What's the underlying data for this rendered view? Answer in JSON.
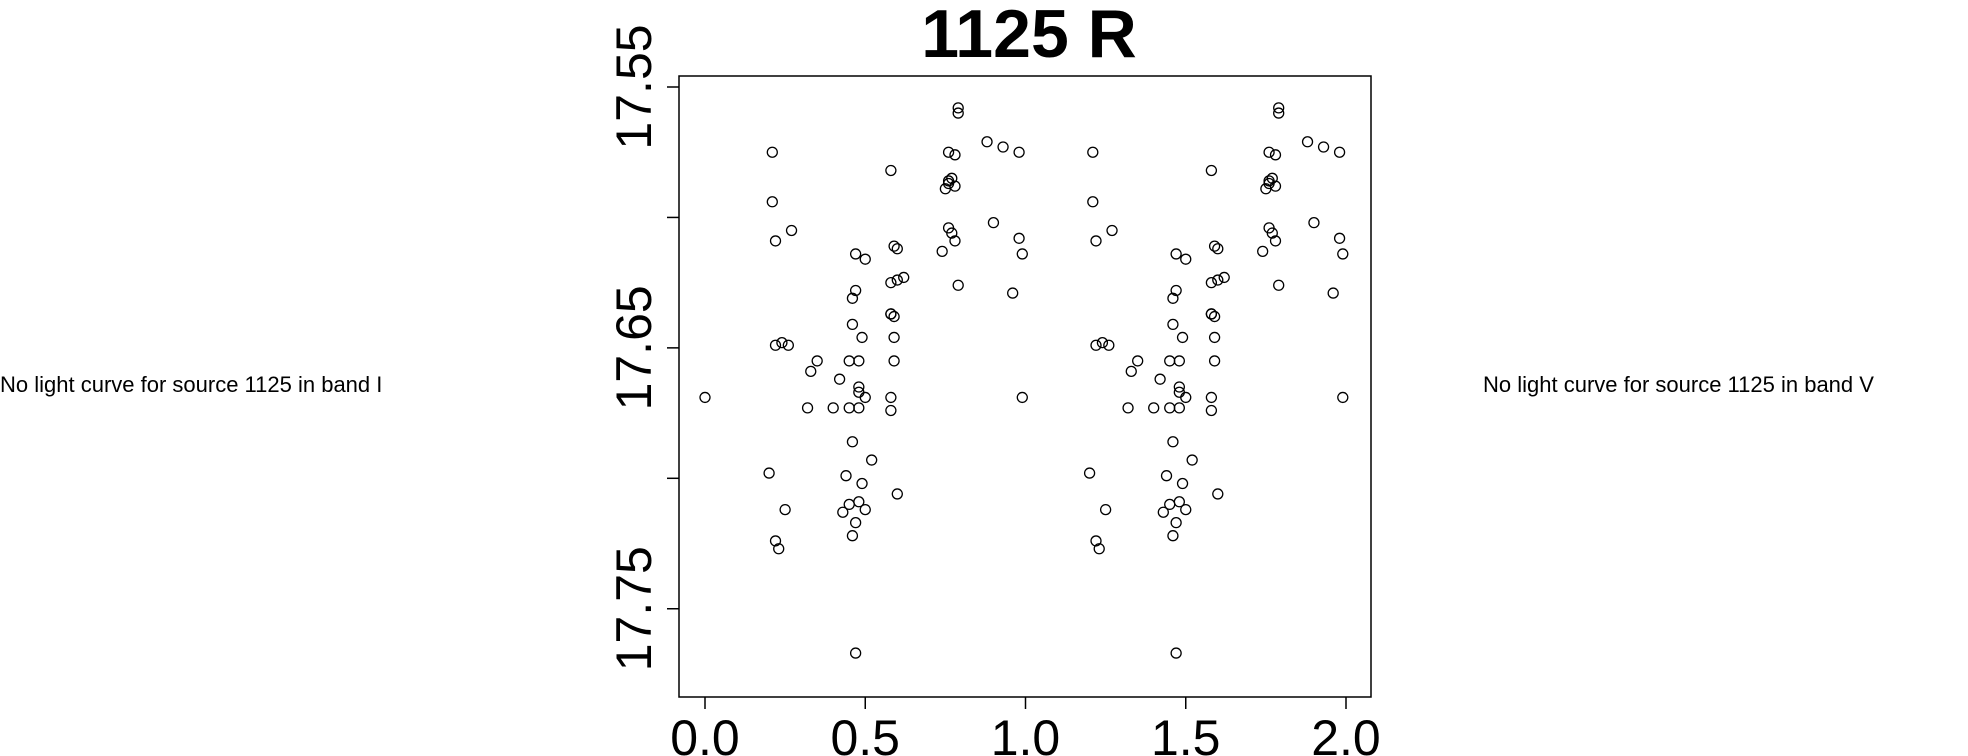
{
  "messages": {
    "left": "No light curve for source 1125 in band I",
    "right": "No light curve for source 1125 in band V"
  },
  "chart_data": {
    "type": "scatter",
    "title": "1125 R",
    "xlabel": "",
    "ylabel": "",
    "xlim": [
      0.0,
      2.0
    ],
    "ylim": [
      17.55,
      17.78
    ],
    "y_inverted": true,
    "grid": false,
    "marker": "open-circle",
    "x_ticks": [
      "0.0",
      "0.5",
      "1.0",
      "1.5",
      "2.0"
    ],
    "x_tick_values": [
      0.0,
      0.5,
      1.0,
      1.5,
      2.0
    ],
    "y_ticks": [
      "17.55",
      "",
      "17.65",
      "",
      "17.75"
    ],
    "y_tick_values": [
      17.55,
      17.6,
      17.65,
      17.7,
      17.75
    ],
    "points": [
      [
        0.0,
        17.669
      ],
      [
        0.2,
        17.698
      ],
      [
        0.21,
        17.575
      ],
      [
        0.21,
        17.594
      ],
      [
        0.22,
        17.609
      ],
      [
        0.22,
        17.724
      ],
      [
        0.23,
        17.727
      ],
      [
        0.22,
        17.649
      ],
      [
        0.24,
        17.648
      ],
      [
        0.26,
        17.649
      ],
      [
        0.25,
        17.712
      ],
      [
        0.27,
        17.605
      ],
      [
        0.32,
        17.673
      ],
      [
        0.33,
        17.659
      ],
      [
        0.35,
        17.655
      ],
      [
        0.4,
        17.673
      ],
      [
        0.42,
        17.662
      ],
      [
        0.43,
        17.713
      ],
      [
        0.44,
        17.699
      ],
      [
        0.45,
        17.71
      ],
      [
        0.45,
        17.673
      ],
      [
        0.45,
        17.655
      ],
      [
        0.46,
        17.641
      ],
      [
        0.46,
        17.631
      ],
      [
        0.46,
        17.722
      ],
      [
        0.46,
        17.686
      ],
      [
        0.47,
        17.717
      ],
      [
        0.47,
        17.767
      ],
      [
        0.47,
        17.628
      ],
      [
        0.47,
        17.614
      ],
      [
        0.48,
        17.667
      ],
      [
        0.48,
        17.665
      ],
      [
        0.48,
        17.655
      ],
      [
        0.48,
        17.673
      ],
      [
        0.48,
        17.709
      ],
      [
        0.49,
        17.702
      ],
      [
        0.5,
        17.669
      ],
      [
        0.49,
        17.646
      ],
      [
        0.5,
        17.712
      ],
      [
        0.5,
        17.616
      ],
      [
        0.52,
        17.693
      ],
      [
        0.58,
        17.674
      ],
      [
        0.58,
        17.582
      ],
      [
        0.58,
        17.625
      ],
      [
        0.58,
        17.637
      ],
      [
        0.58,
        17.637
      ],
      [
        0.59,
        17.638
      ],
      [
        0.58,
        17.669
      ],
      [
        0.59,
        17.655
      ],
      [
        0.59,
        17.646
      ],
      [
        0.59,
        17.611
      ],
      [
        0.6,
        17.624
      ],
      [
        0.6,
        17.706
      ],
      [
        0.6,
        17.612
      ],
      [
        0.62,
        17.623
      ],
      [
        0.74,
        17.613
      ],
      [
        0.75,
        17.589
      ],
      [
        0.76,
        17.587
      ],
      [
        0.76,
        17.586
      ],
      [
        0.76,
        17.575
      ],
      [
        0.76,
        17.604
      ],
      [
        0.77,
        17.585
      ],
      [
        0.77,
        17.606
      ],
      [
        0.78,
        17.576
      ],
      [
        0.78,
        17.588
      ],
      [
        0.78,
        17.609
      ],
      [
        0.79,
        17.558
      ],
      [
        0.79,
        17.56
      ],
      [
        0.79,
        17.626
      ],
      [
        0.88,
        17.571
      ],
      [
        0.9,
        17.602
      ],
      [
        0.93,
        17.573
      ],
      [
        0.96,
        17.629
      ],
      [
        0.98,
        17.575
      ],
      [
        0.98,
        17.608
      ],
      [
        0.99,
        17.614
      ],
      [
        0.99,
        17.669
      ],
      [
        1.2,
        17.698
      ],
      [
        1.21,
        17.575
      ],
      [
        1.21,
        17.594
      ],
      [
        1.22,
        17.609
      ],
      [
        1.22,
        17.724
      ],
      [
        1.23,
        17.727
      ],
      [
        1.22,
        17.649
      ],
      [
        1.24,
        17.648
      ],
      [
        1.26,
        17.649
      ],
      [
        1.25,
        17.712
      ],
      [
        1.27,
        17.605
      ],
      [
        1.32,
        17.673
      ],
      [
        1.33,
        17.659
      ],
      [
        1.35,
        17.655
      ],
      [
        1.4,
        17.673
      ],
      [
        1.42,
        17.662
      ],
      [
        1.43,
        17.713
      ],
      [
        1.44,
        17.699
      ],
      [
        1.45,
        17.71
      ],
      [
        1.45,
        17.673
      ],
      [
        1.45,
        17.655
      ],
      [
        1.46,
        17.641
      ],
      [
        1.46,
        17.631
      ],
      [
        1.46,
        17.722
      ],
      [
        1.46,
        17.686
      ],
      [
        1.47,
        17.717
      ],
      [
        1.47,
        17.767
      ],
      [
        1.47,
        17.628
      ],
      [
        1.47,
        17.614
      ],
      [
        1.48,
        17.667
      ],
      [
        1.48,
        17.665
      ],
      [
        1.48,
        17.655
      ],
      [
        1.48,
        17.673
      ],
      [
        1.48,
        17.709
      ],
      [
        1.49,
        17.702
      ],
      [
        1.5,
        17.669
      ],
      [
        1.49,
        17.646
      ],
      [
        1.5,
        17.712
      ],
      [
        1.5,
        17.616
      ],
      [
        1.52,
        17.693
      ],
      [
        1.58,
        17.674
      ],
      [
        1.58,
        17.582
      ],
      [
        1.58,
        17.625
      ],
      [
        1.58,
        17.637
      ],
      [
        1.58,
        17.637
      ],
      [
        1.59,
        17.638
      ],
      [
        1.58,
        17.669
      ],
      [
        1.59,
        17.655
      ],
      [
        1.59,
        17.646
      ],
      [
        1.59,
        17.611
      ],
      [
        1.6,
        17.624
      ],
      [
        1.6,
        17.706
      ],
      [
        1.6,
        17.612
      ],
      [
        1.62,
        17.623
      ],
      [
        1.74,
        17.613
      ],
      [
        1.75,
        17.589
      ],
      [
        1.76,
        17.587
      ],
      [
        1.76,
        17.586
      ],
      [
        1.76,
        17.575
      ],
      [
        1.76,
        17.604
      ],
      [
        1.77,
        17.585
      ],
      [
        1.77,
        17.606
      ],
      [
        1.78,
        17.576
      ],
      [
        1.78,
        17.588
      ],
      [
        1.78,
        17.609
      ],
      [
        1.79,
        17.558
      ],
      [
        1.79,
        17.56
      ],
      [
        1.79,
        17.626
      ],
      [
        1.88,
        17.571
      ],
      [
        1.9,
        17.602
      ],
      [
        1.93,
        17.573
      ],
      [
        1.96,
        17.629
      ],
      [
        1.98,
        17.575
      ],
      [
        1.98,
        17.608
      ],
      [
        1.99,
        17.614
      ],
      [
        1.99,
        17.669
      ]
    ]
  }
}
